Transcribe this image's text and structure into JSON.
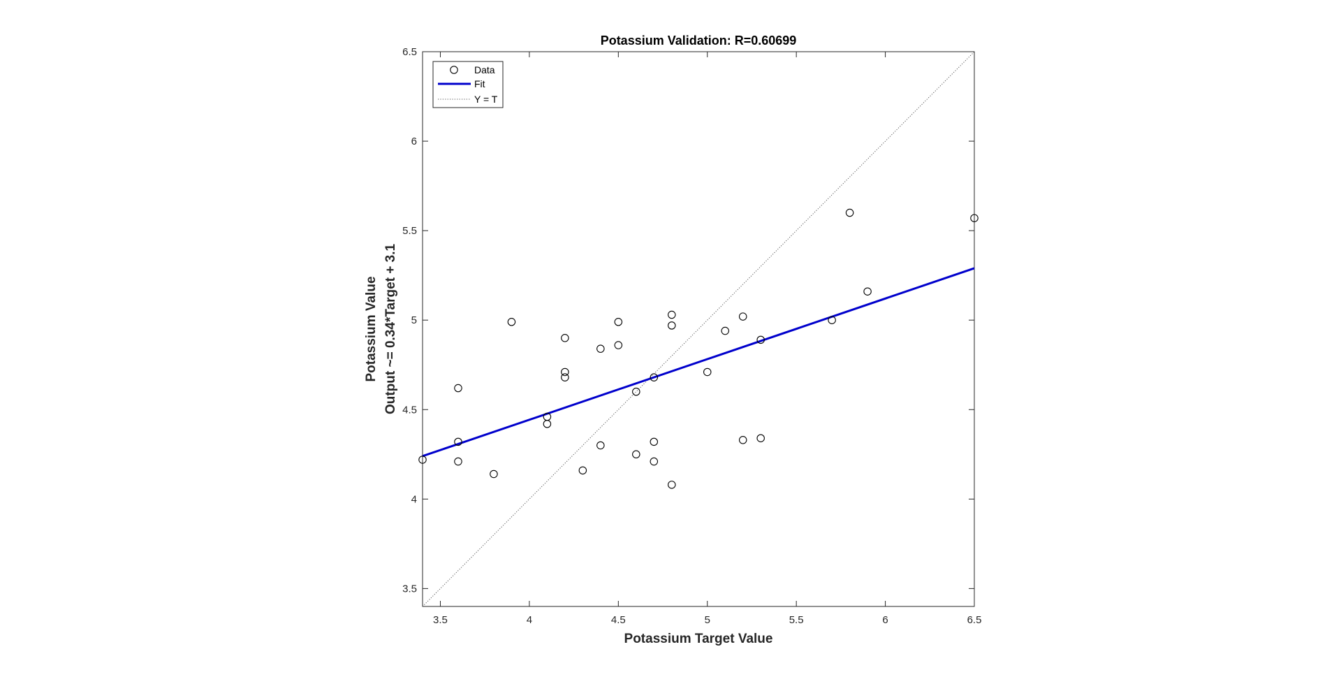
{
  "chart_data": {
    "type": "scatter",
    "title": "Potassium Validation: R=0.60699",
    "xlabel": "Potassium Target Value",
    "ylabel": [
      "Potassium Value",
      "Output ~= 0.34*Target + 3.1"
    ],
    "xlim": [
      3.4,
      6.5
    ],
    "ylim": [
      3.4,
      6.5
    ],
    "xticks": [
      "3.5",
      "4",
      "4.5",
      "5",
      "5.5",
      "6",
      "6.5"
    ],
    "xtick_values": [
      3.5,
      4,
      4.5,
      5,
      5.5,
      6,
      6.5
    ],
    "yticks": [
      "3.5",
      "4",
      "4.5",
      "5",
      "5.5",
      "6",
      "6.5"
    ],
    "ytick_values": [
      3.5,
      4,
      4.5,
      5,
      5.5,
      6,
      6.5
    ],
    "grid": false,
    "legend_position": "top-left",
    "series": [
      {
        "name": "Data",
        "kind": "markers",
        "color": "#000000",
        "points": [
          [
            3.4,
            4.22
          ],
          [
            3.6,
            4.62
          ],
          [
            3.6,
            4.32
          ],
          [
            3.6,
            4.21
          ],
          [
            3.8,
            4.14
          ],
          [
            3.9,
            4.99
          ],
          [
            4.1,
            4.46
          ],
          [
            4.1,
            4.42
          ],
          [
            4.2,
            4.9
          ],
          [
            4.2,
            4.71
          ],
          [
            4.2,
            4.68
          ],
          [
            4.3,
            4.16
          ],
          [
            4.4,
            4.84
          ],
          [
            4.4,
            4.3
          ],
          [
            4.5,
            4.99
          ],
          [
            4.5,
            4.86
          ],
          [
            4.6,
            4.6
          ],
          [
            4.6,
            4.25
          ],
          [
            4.7,
            4.68
          ],
          [
            4.7,
            4.32
          ],
          [
            4.7,
            4.21
          ],
          [
            4.8,
            5.03
          ],
          [
            4.8,
            4.97
          ],
          [
            4.8,
            4.08
          ],
          [
            5.0,
            4.71
          ],
          [
            5.1,
            4.94
          ],
          [
            5.2,
            5.02
          ],
          [
            5.2,
            4.33
          ],
          [
            5.3,
            4.89
          ],
          [
            5.3,
            4.34
          ],
          [
            5.7,
            5.0
          ],
          [
            5.8,
            5.6
          ],
          [
            5.9,
            5.16
          ],
          [
            6.5,
            5.57
          ]
        ]
      },
      {
        "name": "Fit",
        "kind": "line",
        "color": "#0000CC",
        "points": [
          [
            3.4,
            4.24
          ],
          [
            6.5,
            5.29
          ]
        ]
      },
      {
        "name": "Y = T",
        "kind": "dotted-line",
        "color": "#555555",
        "points": [
          [
            3.4,
            3.4
          ],
          [
            6.5,
            6.5
          ]
        ]
      }
    ]
  }
}
